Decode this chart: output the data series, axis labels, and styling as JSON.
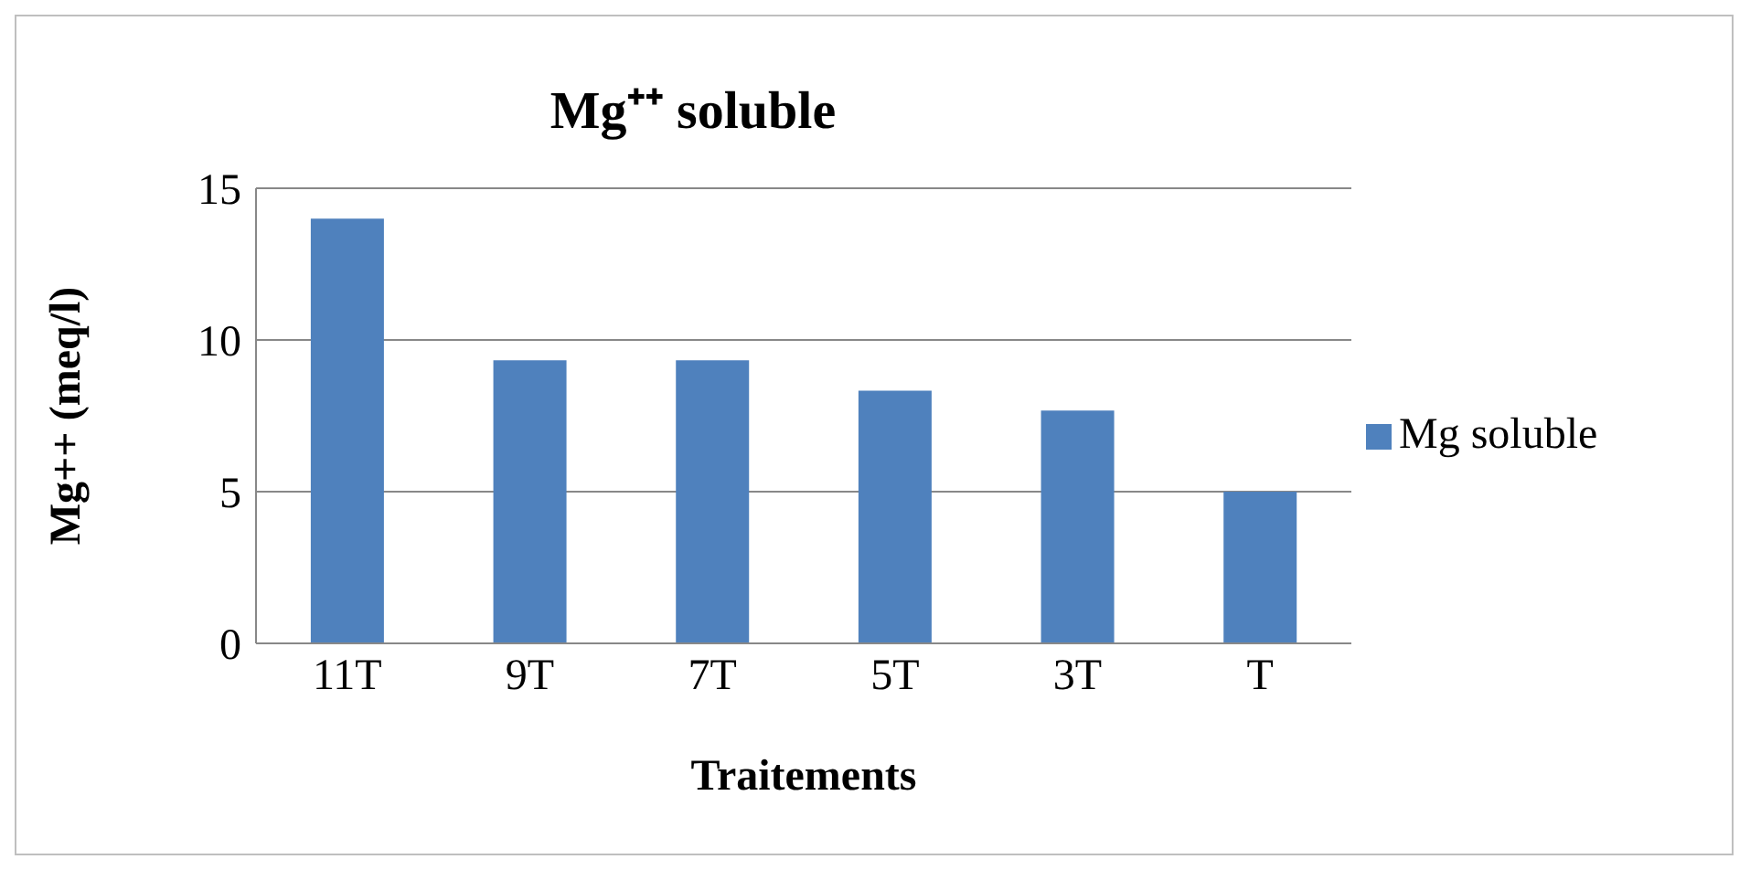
{
  "chart_data": {
    "type": "bar",
    "title": "Mg⁺⁺ soluble",
    "xlabel": "Traitements",
    "ylabel": "Mg++ (meq/l)",
    "categories": [
      "11T",
      "9T",
      "7T",
      "5T",
      "3T",
      "T"
    ],
    "series": [
      {
        "name": "Mg soluble",
        "color": "#4f81bd",
        "values": [
          14,
          9.33,
          9.33,
          8.33,
          7.67,
          5
        ]
      }
    ],
    "ylim": [
      0,
      15
    ],
    "yticks": [
      0,
      5,
      10,
      15
    ],
    "grid": "y",
    "legend": "right"
  }
}
